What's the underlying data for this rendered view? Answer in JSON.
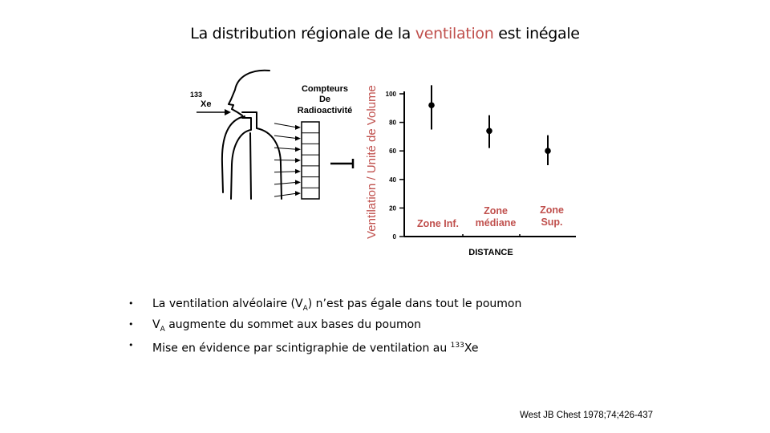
{
  "slide": {
    "title_part1": "La distribution régionale de la ",
    "title_highlight": "ventilation",
    "title_part2": " est inégale",
    "highlight_color": "#c0504d"
  },
  "diagram": {
    "isotope_mass": "133",
    "isotope_symbol": "Xe",
    "counter_label_lines": [
      "Compteurs",
      "De",
      "Radioactivité"
    ],
    "counter_count": 7
  },
  "chart_data": {
    "type": "scatter",
    "ylabel": "Ventilation / Unité de Volume",
    "xlabel": "DISTANCE",
    "ylim": [
      0,
      100
    ],
    "yticks": [
      0,
      20,
      40,
      60,
      80,
      100
    ],
    "yticklabels": [
      "0",
      "20",
      "40",
      "60",
      "80",
      "100"
    ],
    "categories": [
      "Zone Inf.",
      "Zone médiane",
      "Zone Sup."
    ],
    "category_label_lines": [
      [
        "Zone Inf."
      ],
      [
        "Zone",
        "médiane"
      ],
      [
        "Zone",
        "Sup."
      ]
    ],
    "values": [
      92,
      74,
      60
    ],
    "error_low": [
      75,
      62,
      50
    ],
    "error_high": [
      106,
      85,
      71
    ],
    "label_color": "#c0504d"
  },
  "bullets": [
    {
      "before": "La ventilation alvéolaire (V",
      "sub": "A",
      "after": ") n’est pas égale dans tout le poumon"
    },
    {
      "before": "V",
      "sub": "A",
      "after": " augmente du sommet aux bases du poumon"
    },
    {
      "before": "Mise en évidence par scintigraphie de ventilation au ",
      "sup": "133",
      "after": "Xe"
    }
  ],
  "citation": "West JB Chest 1978;74;426-437"
}
